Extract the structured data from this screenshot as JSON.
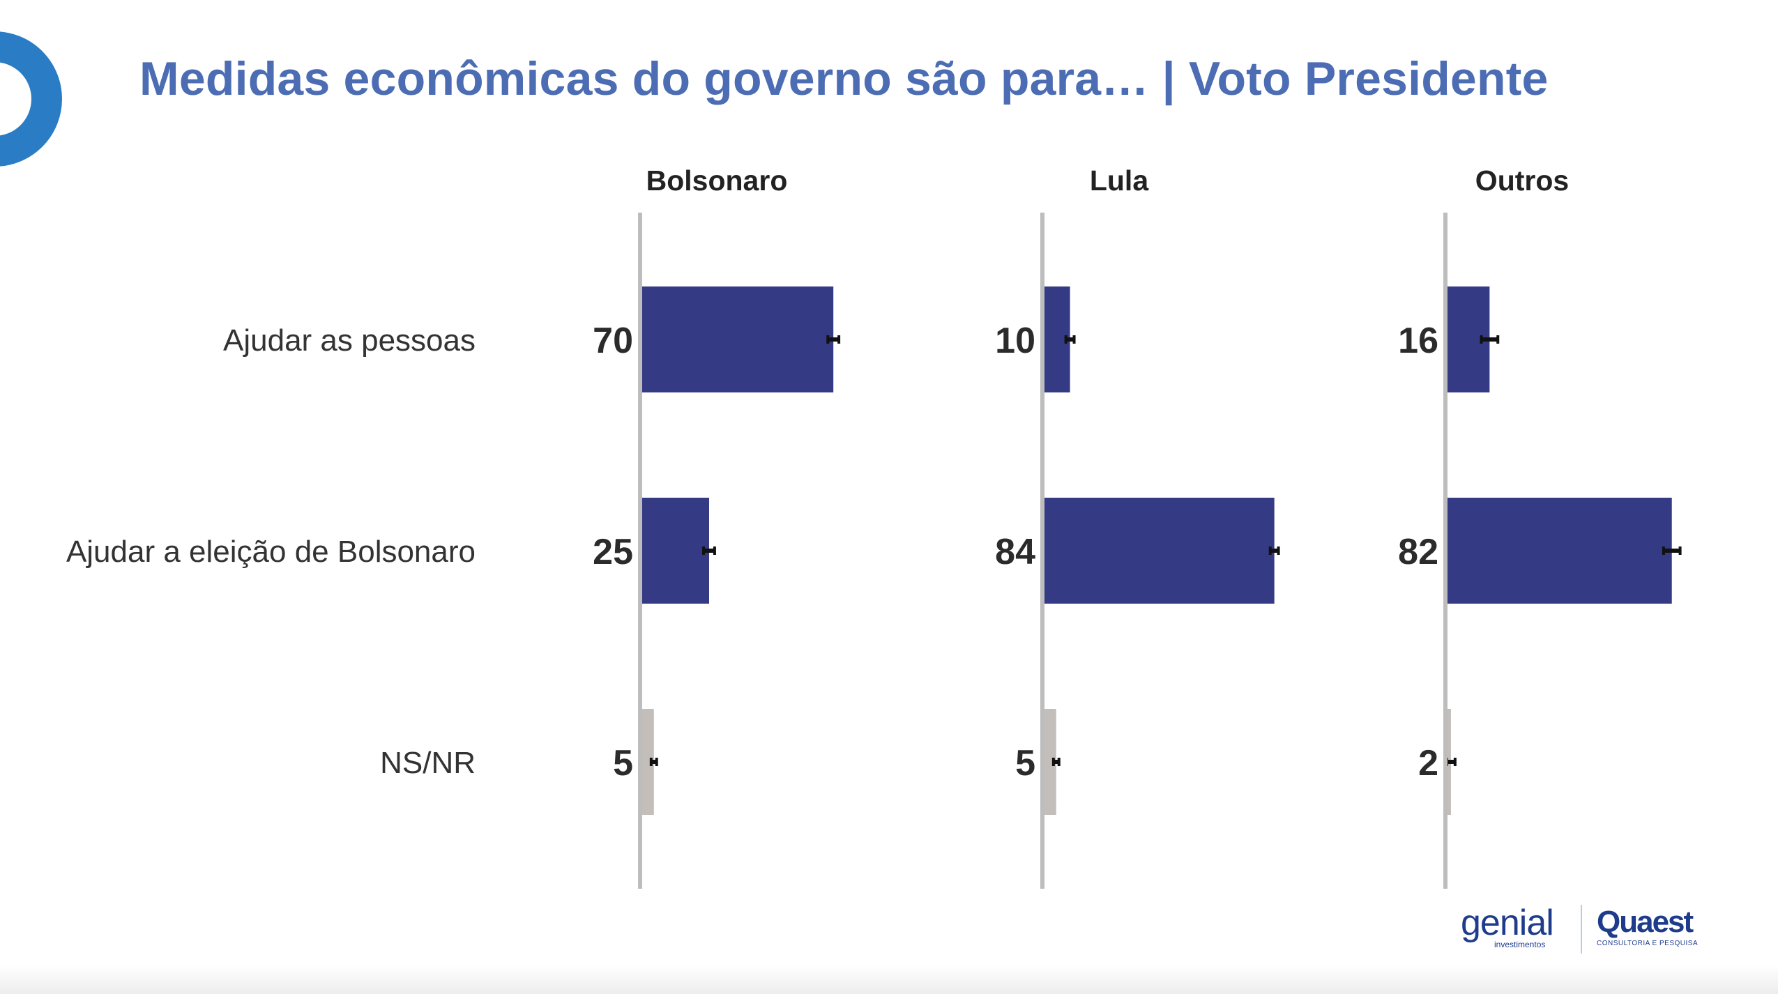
{
  "page": {
    "title": "Medidas econômicas do governo são para… | Voto Presidente"
  },
  "logos": {
    "genial": "genial",
    "genial_sub": "investimentos",
    "quaest": "Quaest",
    "quaest_sub": "CONSULTORIA E PESQUISA"
  },
  "colors": {
    "accent": "#2a7cc4",
    "title": "#4c6db3",
    "bar_main": "#353a85",
    "bar_na": "#c4bebb",
    "axis": "#bdbdbd",
    "error_bar": "#111111"
  },
  "chart_data": {
    "type": "bar",
    "orientation": "horizontal",
    "categories": [
      "Ajudar as pessoas",
      "Ajudar a eleição de Bolsonaro",
      "NS/NR"
    ],
    "xlim": [
      0,
      100
    ],
    "grid": false,
    "legend": "none",
    "panels": [
      {
        "name": "Bolsonaro",
        "values": [
          70,
          25,
          5
        ],
        "error_margin": [
          2,
          2,
          1
        ]
      },
      {
        "name": "Lula",
        "values": [
          10,
          84,
          5
        ],
        "error_margin": [
          1.5,
          1.5,
          1
        ]
      },
      {
        "name": "Outros",
        "values": [
          16,
          82,
          2
        ],
        "error_margin": [
          3,
          3,
          1.5
        ]
      }
    ]
  }
}
